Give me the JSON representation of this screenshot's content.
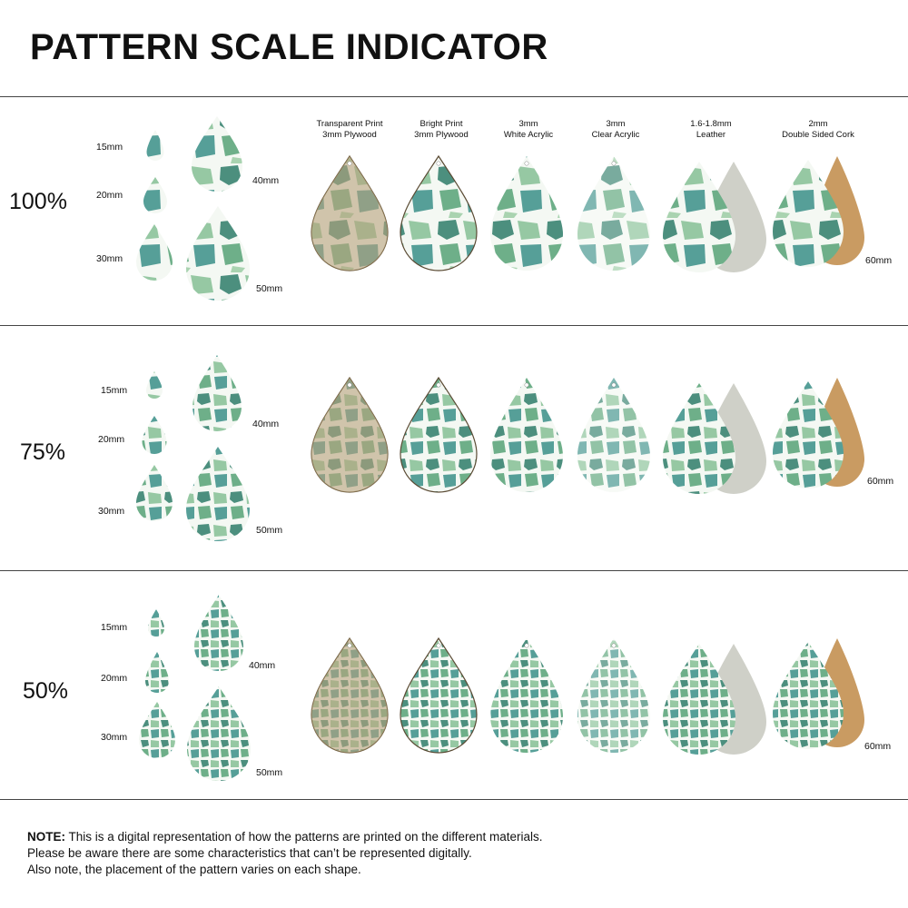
{
  "title": "PATTERN SCALE INDICATOR",
  "materials": [
    {
      "line1": "Transparent Print",
      "line2": "3mm Plywood",
      "backing": "none",
      "tint": "#b9a07a"
    },
    {
      "line1": "Bright Print",
      "line2": "3mm Plywood",
      "backing": "none",
      "tint": "#3e8a6e"
    },
    {
      "line1": "3mm",
      "line2": "White Acrylic",
      "backing": "none",
      "tint": "#5aa27a"
    },
    {
      "line1": "3mm",
      "line2": "Clear Acrylic",
      "backing": "none",
      "tint": "#7bb890"
    },
    {
      "line1": "1.6-1.8mm",
      "line2": "Leather",
      "backing": "leather",
      "tint": "#4f9c86"
    },
    {
      "line1": "2mm",
      "line2": "Double Sided Cork",
      "backing": "cork",
      "tint": "#78b394"
    }
  ],
  "sections": [
    {
      "scale": "100%",
      "sizes": {
        "s15": "15mm",
        "s20": "20mm",
        "s30": "30mm",
        "s40": "40mm",
        "s50": "50mm"
      },
      "large_size": "60mm"
    },
    {
      "scale": "75%",
      "sizes": {
        "s15": "15mm",
        "s20": "20mm",
        "s30": "30mm",
        "s40": "40mm",
        "s50": "50mm"
      },
      "large_size": "60mm"
    },
    {
      "scale": "50%",
      "sizes": {
        "s15": "15mm",
        "s20": "20mm",
        "s30": "30mm",
        "s40": "40mm",
        "s50": "50mm"
      },
      "large_size": "60mm"
    }
  ],
  "note": {
    "label": "NOTE:",
    "line1": " This is a digital representation of how the patterns are printed on the different materials.",
    "line2": "Please be aware there are some characteristics that can’t be represented digitally.",
    "line3": "Also note, the placement of the pattern varies on each shape."
  },
  "colors": {
    "rule": "#444444",
    "green_dark": "#2f7d6a",
    "green_mid": "#5fa87e",
    "green_light": "#a9d3b0",
    "plywood": "#b8a27c",
    "leather_back": "#cfd0c8",
    "cork": "#c99b62"
  }
}
